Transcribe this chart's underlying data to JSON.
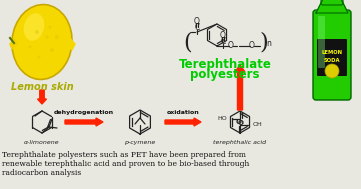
{
  "caption": "Terephthalate polyesters such as PET have been prepared from\nrenewable terephthalic acid and proven to be bio-based through\nradiocarbon analysis",
  "lemon_label": "Lemon skin",
  "polymer_label_line1": "Terephthalate",
  "polymer_label_line2": "polyesters",
  "mol1_label": "α-limonene",
  "mol2_label": "p-cymene",
  "mol3_label": "terephthalic acid",
  "arrow1_label": "dehydrogenation",
  "arrow2_label": "oxidation",
  "bg_color": "#e8e8e0",
  "arrow_color": "#ff2200",
  "lemon_label_color": "#aaaa00",
  "polymer_label_color": "#00cc00",
  "caption_color": "#111111",
  "struct_color": "#222222",
  "lemon_body_color": "#f0d000",
  "lemon_edge_color": "#c8aa00",
  "bottle_body_color": "#22cc00",
  "bottle_edge_color": "#009900"
}
